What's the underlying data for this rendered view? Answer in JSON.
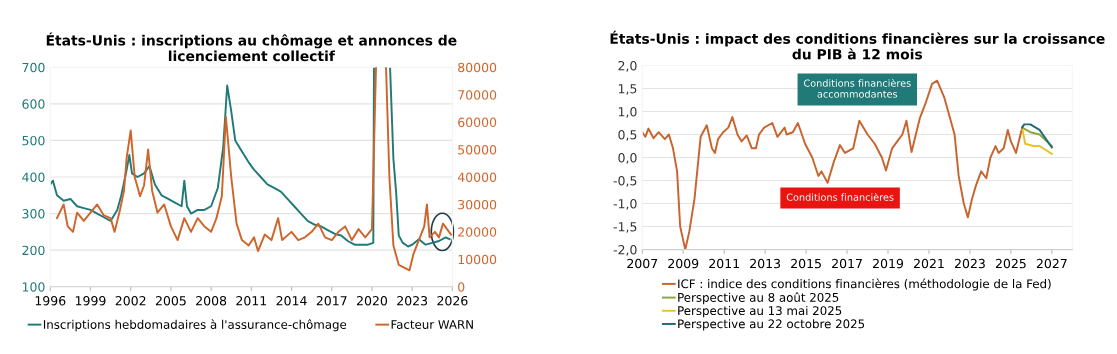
{
  "chart_data": [
    {
      "type": "line",
      "title": "États-Unis : inscriptions au chômage et annonces de licenciement collectif",
      "xlim": [
        1996,
        2026
      ],
      "xticks": [
        1996,
        1999,
        2002,
        2005,
        2008,
        2011,
        2014,
        2017,
        2020,
        2023,
        2026
      ],
      "ylim": [
        100,
        700
      ],
      "yticks": [
        100,
        200,
        300,
        400,
        500,
        600,
        700
      ],
      "y2lim": [
        0,
        80000
      ],
      "y2ticks": [
        0,
        10000,
        20000,
        30000,
        40000,
        50000,
        60000,
        70000,
        80000
      ],
      "grid": "y",
      "legend": "bottom",
      "series": [
        {
          "name": "Inscriptions hebdomadaires à l'assurance-chômage",
          "color": "#1f7a78",
          "x": [
            1996.0,
            1996.2,
            1996.5,
            1997.0,
            1997.5,
            1998.0,
            1998.5,
            1999.0,
            1999.5,
            2000.0,
            2000.5,
            2001.0,
            2001.3,
            2001.7,
            2001.9,
            2002.1,
            2002.5,
            2003.0,
            2003.4,
            2003.8,
            2004.3,
            2004.8,
            2005.3,
            2005.8,
            2006.0,
            2006.2,
            2006.5,
            2007.0,
            2007.5,
            2008.0,
            2008.5,
            2008.9,
            2009.2,
            2009.5,
            2009.8,
            2010.3,
            2010.8,
            2011.2,
            2011.7,
            2012.2,
            2012.7,
            2013.2,
            2013.7,
            2014.2,
            2014.7,
            2015.2,
            2015.7,
            2016.2,
            2016.7,
            2017.2,
            2017.7,
            2018.2,
            2018.7,
            2019.2,
            2019.7,
            2020.1,
            2020.15,
            2020.8,
            2021.35,
            2021.6,
            2021.8,
            2022.0,
            2022.3,
            2022.7,
            2023.0,
            2023.5,
            2024.0,
            2024.5,
            2025.0,
            2025.5,
            2025.8
          ],
          "values": [
            380,
            390,
            350,
            335,
            340,
            320,
            315,
            310,
            300,
            290,
            280,
            310,
            350,
            420,
            460,
            410,
            400,
            410,
            430,
            380,
            350,
            340,
            330,
            320,
            390,
            320,
            300,
            310,
            310,
            320,
            370,
            480,
            650,
            580,
            500,
            470,
            440,
            420,
            400,
            380,
            370,
            360,
            340,
            320,
            300,
            280,
            270,
            265,
            255,
            245,
            240,
            225,
            215,
            215,
            215,
            220,
            700,
            null,
            700,
            450,
            360,
            240,
            220,
            210,
            215,
            230,
            215,
            220,
            225,
            235,
            230
          ]
        },
        {
          "name": "Facteur WARN",
          "color": "#d0652b",
          "axis": "y2",
          "x": [
            1996.5,
            1997.0,
            1997.3,
            1997.7,
            1998.0,
            1998.5,
            1999.0,
            1999.5,
            2000.0,
            2000.5,
            2000.8,
            2001.2,
            2001.5,
            2001.7,
            2002.0,
            2002.3,
            2002.7,
            2003.0,
            2003.3,
            2003.6,
            2004.0,
            2004.5,
            2005.0,
            2005.5,
            2006.0,
            2006.5,
            2007.0,
            2007.5,
            2008.0,
            2008.4,
            2008.8,
            2009.1,
            2009.5,
            2009.9,
            2010.3,
            2010.8,
            2011.2,
            2011.5,
            2012.0,
            2012.5,
            2013.0,
            2013.3,
            2014.0,
            2014.5,
            2015.0,
            2015.5,
            2016.0,
            2016.5,
            2017.0,
            2017.5,
            2018.0,
            2018.5,
            2019.0,
            2019.5,
            2020.0,
            2020.3,
            2020.7,
            2021.05,
            2021.3,
            2021.6,
            2022.0,
            2022.4,
            2022.8,
            2023.1,
            2023.5,
            2023.9,
            2024.1,
            2024.3,
            2024.7,
            2025.0,
            2025.3,
            2025.6,
            2025.9
          ],
          "values": [
            25000,
            30000,
            22000,
            20000,
            27000,
            24000,
            27000,
            30000,
            26000,
            25000,
            20000,
            28000,
            35000,
            47000,
            57000,
            40000,
            33000,
            37000,
            50000,
            35000,
            27000,
            30000,
            22000,
            17000,
            25000,
            20000,
            25000,
            22000,
            20000,
            25000,
            33000,
            62000,
            40000,
            23000,
            17000,
            15000,
            18000,
            13000,
            19000,
            17000,
            25000,
            17000,
            20000,
            17000,
            18000,
            20000,
            23000,
            18000,
            17000,
            20000,
            22000,
            17000,
            21000,
            18000,
            21000,
            80000,
            null,
            80000,
            40000,
            15000,
            8000,
            7000,
            6000,
            12000,
            17000,
            22000,
            30000,
            18000,
            20000,
            18000,
            23000,
            21000,
            19000
          ]
        }
      ]
    },
    {
      "type": "line",
      "title": "États-Unis : impact des conditions financières sur la croissance du PIB à 12 mois",
      "xlim": [
        2007,
        2028
      ],
      "xticks": [
        2007,
        2009,
        2011,
        2013,
        2015,
        2017,
        2019,
        2021,
        2023,
        2025,
        2027
      ],
      "ylim": [
        -2.0,
        2.0
      ],
      "yticks": [
        {
          "value": -2.0,
          "label": "-2,0"
        },
        {
          "value": -1.5,
          "label": "-1,5"
        },
        {
          "value": -1.0,
          "label": "-1,0"
        },
        {
          "value": -0.5,
          "label": "-0,5"
        },
        {
          "value": 0.0,
          "label": "0,0"
        },
        {
          "value": 0.5,
          "label": "0,5"
        },
        {
          "value": 1.0,
          "label": "1,0"
        },
        {
          "value": 1.5,
          "label": "1,5"
        },
        {
          "value": 2.0,
          "label": "2,0"
        }
      ],
      "grid": "y",
      "legend": "bottom",
      "annotations": [
        "Conditions financières\naccommodantes",
        "Conditions financières"
      ],
      "series": [
        {
          "name": "ICF : indice des conditions financières (méthodologie de la Fed)",
          "color": "#c8652f",
          "x": [
            2007.0,
            2007.15,
            2007.3,
            2007.55,
            2007.8,
            2008.1,
            2008.3,
            2008.5,
            2008.7,
            2008.85,
            2009.1,
            2009.3,
            2009.55,
            2009.85,
            2010.15,
            2010.4,
            2010.55,
            2010.7,
            2010.95,
            2011.2,
            2011.4,
            2011.65,
            2011.85,
            2012.1,
            2012.35,
            2012.55,
            2012.7,
            2012.95,
            2013.35,
            2013.6,
            2013.95,
            2014.05,
            2014.35,
            2014.6,
            2014.95,
            2015.3,
            2015.6,
            2015.75,
            2016.05,
            2016.35,
            2016.65,
            2016.9,
            2017.3,
            2017.6,
            2018.0,
            2018.35,
            2018.7,
            2018.9,
            2019.2,
            2019.45,
            2019.7,
            2019.9,
            2020.15,
            2020.55,
            2020.85,
            2021.15,
            2021.4,
            2021.75,
            2022.0,
            2022.25,
            2022.45,
            2022.7,
            2022.9,
            2023.1,
            2023.3,
            2023.55,
            2023.8,
            2024.0,
            2024.25,
            2024.4,
            2024.65,
            2024.85,
            2025.0,
            2025.25,
            2025.55
          ],
          "values": [
            0.55,
            0.45,
            0.63,
            0.42,
            0.55,
            0.4,
            0.5,
            0.2,
            -0.3,
            -1.5,
            -2.0,
            -1.6,
            -0.9,
            0.45,
            0.7,
            0.2,
            0.1,
            0.4,
            0.55,
            0.65,
            0.88,
            0.5,
            0.35,
            0.48,
            0.2,
            0.2,
            0.5,
            0.65,
            0.75,
            0.45,
            0.65,
            0.5,
            0.55,
            0.75,
            0.3,
            0.0,
            -0.4,
            -0.3,
            -0.55,
            -0.1,
            0.27,
            0.1,
            0.2,
            0.8,
            0.5,
            0.3,
            0.0,
            -0.28,
            0.2,
            0.35,
            0.5,
            0.8,
            0.12,
            0.85,
            1.2,
            1.6,
            1.67,
            1.3,
            0.9,
            0.5,
            -0.4,
            -1.0,
            -1.3,
            -0.9,
            -0.6,
            -0.3,
            -0.45,
            0.0,
            0.25,
            0.1,
            0.2,
            0.6,
            0.35,
            0.1,
            0.65
          ]
        },
        {
          "name": "Perspective au 8 août 2025",
          "color": "#8aa83a",
          "x": [
            2025.55,
            2025.95,
            2026.4,
            2027.0
          ],
          "values": [
            0.65,
            0.55,
            0.5,
            0.25
          ]
        },
        {
          "name": "Perspective au 13 mai 2025",
          "color": "#e8c22a",
          "x": [
            2025.55,
            2025.7,
            2026.1,
            2026.4,
            2027.0
          ],
          "values": [
            0.65,
            0.3,
            0.25,
            0.25,
            0.08
          ]
        },
        {
          "name": "Perspective au 22 octobre 2025",
          "color": "#1f6b78",
          "x": [
            2025.55,
            2025.65,
            2025.95,
            2026.4,
            2027.0
          ],
          "values": [
            0.65,
            0.72,
            0.72,
            0.6,
            0.22
          ]
        }
      ]
    }
  ]
}
